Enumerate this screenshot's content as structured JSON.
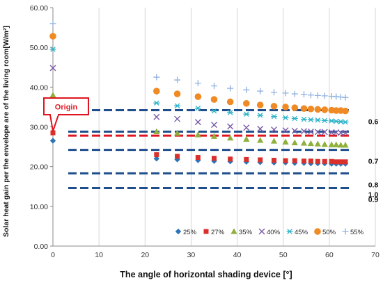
{
  "chart_data": {
    "type": "scatter",
    "xlabel": "The angle of horizontal shading device [°]",
    "ylabel": "Solar heat gain per the envelope are of the living room[W/m²]",
    "xlim": [
      0,
      70
    ],
    "ylim": [
      0,
      60
    ],
    "x_ticks": [
      "0",
      "10",
      "20",
      "30",
      "40",
      "50",
      "60",
      "70"
    ],
    "y_ticks": [
      "0.00",
      "10.00",
      "20.00",
      "30.00",
      "40.00",
      "50.00",
      "60.00"
    ],
    "grid": "vertical",
    "legend_position": "bottom-right",
    "annotation": {
      "text": "Origin",
      "target_x": 0,
      "target_y": 28.2
    },
    "reference_lines": [
      {
        "label": "0.6",
        "y": 34.2,
        "color": "#1f4e8c"
      },
      {
        "label": "",
        "y": 28.8,
        "color": "#1f4e8c"
      },
      {
        "label": "",
        "y": 27.8,
        "color": "#e0141e"
      },
      {
        "label": "0.7",
        "y": 24.2,
        "color": "#1f4e8c"
      },
      {
        "label": "0.8",
        "y": 18.3,
        "color": "#1f4e8c"
      },
      {
        "label": "0.9",
        "y": 14.6,
        "color": "#1f4e8c"
      }
    ],
    "extra_labels": [
      {
        "label": "1.0",
        "y": 13.0
      }
    ],
    "x": [
      0,
      22.5,
      27,
      31.5,
      35,
      38.5,
      42,
      45,
      48,
      50.5,
      52.5,
      54.5,
      56,
      57.5,
      59,
      60.5,
      61.5,
      62.5,
      63.5
    ],
    "series": [
      {
        "name": "25%",
        "marker": "diamond",
        "color": "#2e75b6",
        "values": [
          26.5,
          22.0,
          21.8,
          21.6,
          21.4,
          21.3,
          21.2,
          21.1,
          21.0,
          21.0,
          20.9,
          20.9,
          20.8,
          20.8,
          20.8,
          20.7,
          20.7,
          20.7,
          20.7
        ]
      },
      {
        "name": "27%",
        "marker": "square",
        "color": "#d9302c",
        "values": [
          28.5,
          23.0,
          22.6,
          22.3,
          22.1,
          21.9,
          21.8,
          21.7,
          21.6,
          21.5,
          21.5,
          21.4,
          21.4,
          21.3,
          21.3,
          21.3,
          21.2,
          21.2,
          21.2
        ]
      },
      {
        "name": "35%",
        "marker": "triangle",
        "color": "#8fb03c",
        "values": [
          38.0,
          28.8,
          28.4,
          28.0,
          27.6,
          27.2,
          26.9,
          26.6,
          26.4,
          26.2,
          26.0,
          25.9,
          25.8,
          25.7,
          25.6,
          25.5,
          25.5,
          25.4,
          25.4
        ]
      },
      {
        "name": "40%",
        "marker": "x",
        "color": "#7a5ba8",
        "values": [
          44.8,
          32.5,
          32.0,
          31.2,
          30.5,
          30.1,
          29.8,
          29.5,
          29.3,
          29.1,
          29.0,
          28.9,
          28.8,
          28.7,
          28.7,
          28.6,
          28.6,
          28.5,
          28.5
        ]
      },
      {
        "name": "45%",
        "marker": "asterisk",
        "color": "#2bb3c9",
        "values": [
          49.5,
          36.0,
          35.3,
          34.7,
          34.0,
          33.6,
          33.2,
          32.9,
          32.6,
          32.3,
          32.1,
          31.9,
          31.8,
          31.7,
          31.6,
          31.5,
          31.4,
          31.3,
          31.2
        ]
      },
      {
        "name": "50%",
        "marker": "circle",
        "color": "#f08a24",
        "values": [
          52.8,
          39.0,
          38.3,
          37.6,
          36.9,
          36.3,
          35.9,
          35.5,
          35.2,
          35.0,
          34.8,
          34.6,
          34.5,
          34.4,
          34.3,
          34.2,
          34.1,
          34.1,
          34.0
        ]
      },
      {
        "name": "55%",
        "marker": "plus",
        "color": "#8fb1e0",
        "values": [
          56.0,
          42.5,
          41.8,
          41.0,
          40.3,
          39.7,
          39.3,
          39.0,
          38.7,
          38.5,
          38.3,
          38.2,
          38.0,
          37.9,
          37.8,
          37.7,
          37.6,
          37.5,
          37.4
        ]
      }
    ]
  }
}
